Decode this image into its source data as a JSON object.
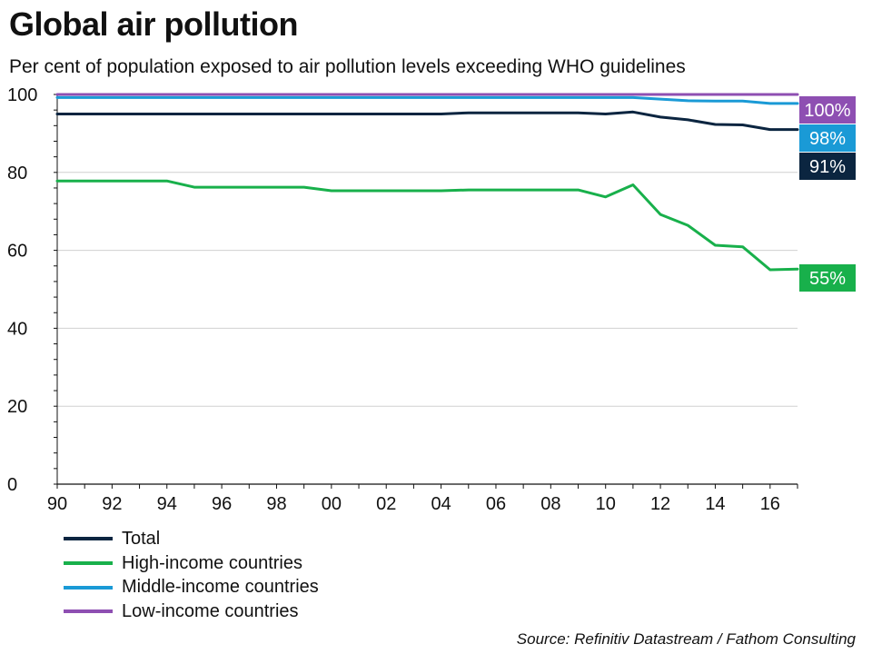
{
  "title": "Global air pollution",
  "subtitle": "Per cent of population exposed to air pollution levels exceeding WHO guidelines",
  "source": "Source: Refinitiv Datastream / Fathom Consulting",
  "chart_data": {
    "type": "line",
    "title": "Global air pollution",
    "subtitle": "Per cent of population exposed to air pollution levels exceeding WHO guidelines",
    "x": [
      1990,
      1991,
      1992,
      1993,
      1994,
      1995,
      1996,
      1997,
      1998,
      1999,
      2000,
      2001,
      2002,
      2003,
      2004,
      2005,
      2006,
      2007,
      2008,
      2009,
      2010,
      2011,
      2012,
      2013,
      2014,
      2015,
      2016,
      2017
    ],
    "xticks": [
      1990,
      1992,
      1994,
      1996,
      1998,
      2000,
      2002,
      2004,
      2006,
      2008,
      2010,
      2012,
      2014,
      2016
    ],
    "xtick_labels": [
      "90",
      "92",
      "94",
      "96",
      "98",
      "00",
      "02",
      "04",
      "06",
      "08",
      "10",
      "12",
      "14",
      "16"
    ],
    "xlim": [
      1990,
      2017
    ],
    "ylim": [
      0,
      100
    ],
    "yticks": [
      0,
      20,
      40,
      60,
      80,
      100
    ],
    "ytick_labels": [
      "0",
      "20",
      "40",
      "60",
      "80",
      "100"
    ],
    "grid": true,
    "legend_position": "bottom-left",
    "series": [
      {
        "name": "Total",
        "color": "#0b2540",
        "end_label": "91%",
        "values": [
          95,
          95,
          95,
          95,
          95,
          95,
          95,
          95,
          95,
          95,
          95,
          95,
          95,
          95,
          95,
          95.3,
          95.3,
          95.3,
          95.3,
          95.3,
          95,
          95.5,
          94.2,
          93.5,
          92.3,
          92.2,
          91,
          91
        ]
      },
      {
        "name": "High-income countries",
        "color": "#18b04b",
        "end_label": "55%",
        "values": [
          77.8,
          77.8,
          77.8,
          77.8,
          77.8,
          76.2,
          76.2,
          76.2,
          76.2,
          76.2,
          75.3,
          75.3,
          75.3,
          75.3,
          75.3,
          75.5,
          75.5,
          75.5,
          75.5,
          75.5,
          73.7,
          76.8,
          69.2,
          66.4,
          61.3,
          60.9,
          55,
          55.2
        ]
      },
      {
        "name": "Middle-income countries",
        "color": "#1a9ad6",
        "end_label": "98%",
        "values": [
          99.2,
          99.2,
          99.2,
          99.2,
          99.2,
          99.2,
          99.2,
          99.2,
          99.2,
          99.2,
          99.2,
          99.2,
          99.2,
          99.2,
          99.2,
          99.2,
          99.2,
          99.2,
          99.2,
          99.2,
          99.2,
          99.2,
          98.8,
          98.4,
          98.3,
          98.3,
          97.7,
          97.7
        ]
      },
      {
        "name": "Low-income countries",
        "color": "#8e4fb2",
        "end_label": "100%",
        "values": [
          100,
          100,
          100,
          100,
          100,
          100,
          100,
          100,
          100,
          100,
          100,
          100,
          100,
          100,
          100,
          100,
          100,
          100,
          100,
          100,
          100,
          100,
          100,
          100,
          100,
          100,
          100,
          100
        ]
      }
    ]
  }
}
